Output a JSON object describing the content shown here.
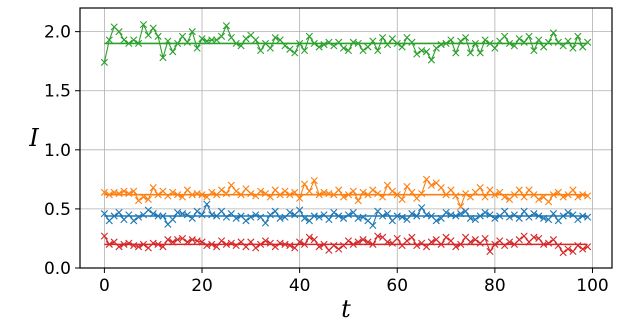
{
  "chart_data": {
    "type": "line",
    "title": "",
    "xlabel": "t",
    "ylabel": "I",
    "xlim": [
      -5,
      104
    ],
    "ylim": [
      0.0,
      2.2
    ],
    "xticks": [
      0,
      20,
      40,
      60,
      80,
      100
    ],
    "xtick_labels": [
      "0",
      "20",
      "40",
      "60",
      "80",
      "100"
    ],
    "yticks": [
      0.0,
      0.5,
      1.0,
      1.5,
      2.0
    ],
    "ytick_labels": [
      "0.0",
      "0.5",
      "1.0",
      "1.5",
      "2.0"
    ],
    "grid": true,
    "legend": "none",
    "marker": "x",
    "series": [
      {
        "color": "#2ca02c",
        "mean": 1.9,
        "values": [
          1.74,
          1.93,
          2.04,
          2.0,
          1.93,
          1.9,
          1.93,
          1.9,
          2.06,
          1.97,
          2.03,
          1.96,
          1.78,
          1.92,
          1.83,
          1.9,
          1.96,
          1.91,
          2.0,
          1.86,
          1.94,
          1.92,
          1.93,
          1.93,
          1.96,
          2.05,
          1.95,
          1.9,
          1.88,
          1.94,
          1.97,
          1.93,
          1.84,
          1.9,
          1.86,
          1.95,
          1.93,
          1.88,
          1.85,
          1.82,
          1.9,
          1.84,
          1.96,
          1.9,
          1.87,
          1.89,
          1.91,
          1.88,
          1.91,
          1.86,
          1.84,
          1.91,
          1.9,
          1.84,
          1.87,
          1.92,
          1.84,
          1.95,
          1.89,
          1.94,
          1.9,
          1.87,
          1.95,
          1.91,
          1.81,
          1.84,
          1.83,
          1.76,
          1.86,
          1.89,
          1.9,
          1.93,
          1.82,
          1.92,
          1.95,
          1.82,
          1.9,
          1.82,
          1.93,
          1.9,
          1.86,
          1.92,
          1.96,
          1.9,
          1.88,
          1.94,
          1.91,
          1.96,
          1.84,
          1.93,
          1.87,
          1.91,
          1.99,
          1.91,
          1.88,
          1.92,
          1.86,
          1.96,
          1.87,
          1.91
        ]
      },
      {
        "color": "#ff7f0e",
        "mean": 0.62,
        "values": [
          0.64,
          0.62,
          0.64,
          0.63,
          0.65,
          0.63,
          0.65,
          0.57,
          0.6,
          0.58,
          0.68,
          0.62,
          0.65,
          0.61,
          0.64,
          0.62,
          0.6,
          0.66,
          0.62,
          0.63,
          0.62,
          0.6,
          0.64,
          0.62,
          0.66,
          0.63,
          0.7,
          0.65,
          0.62,
          0.67,
          0.63,
          0.61,
          0.65,
          0.63,
          0.6,
          0.66,
          0.62,
          0.65,
          0.62,
          0.64,
          0.59,
          0.71,
          0.65,
          0.74,
          0.62,
          0.64,
          0.63,
          0.62,
          0.66,
          0.6,
          0.62,
          0.65,
          0.57,
          0.64,
          0.62,
          0.66,
          0.63,
          0.6,
          0.7,
          0.65,
          0.62,
          0.58,
          0.69,
          0.64,
          0.59,
          0.63,
          0.75,
          0.7,
          0.72,
          0.68,
          0.62,
          0.66,
          0.61,
          0.52,
          0.63,
          0.6,
          0.64,
          0.68,
          0.6,
          0.66,
          0.62,
          0.64,
          0.6,
          0.58,
          0.62,
          0.66,
          0.6,
          0.66,
          0.62,
          0.58,
          0.6,
          0.56,
          0.62,
          0.64,
          0.6,
          0.62,
          0.66,
          0.6,
          0.62,
          0.61
        ]
      },
      {
        "color": "#1f77b4",
        "mean": 0.44,
        "values": [
          0.46,
          0.4,
          0.44,
          0.47,
          0.41,
          0.45,
          0.4,
          0.43,
          0.45,
          0.49,
          0.46,
          0.44,
          0.44,
          0.37,
          0.41,
          0.47,
          0.46,
          0.45,
          0.42,
          0.48,
          0.45,
          0.54,
          0.45,
          0.44,
          0.48,
          0.43,
          0.46,
          0.42,
          0.44,
          0.4,
          0.43,
          0.45,
          0.43,
          0.38,
          0.45,
          0.48,
          0.42,
          0.43,
          0.47,
          0.45,
          0.49,
          0.42,
          0.4,
          0.44,
          0.43,
          0.45,
          0.41,
          0.47,
          0.44,
          0.42,
          0.45,
          0.47,
          0.42,
          0.43,
          0.4,
          0.36,
          0.48,
          0.44,
          0.46,
          0.4,
          0.44,
          0.43,
          0.41,
          0.46,
          0.44,
          0.51,
          0.45,
          0.44,
          0.4,
          0.42,
          0.47,
          0.45,
          0.44,
          0.46,
          0.48,
          0.42,
          0.41,
          0.44,
          0.47,
          0.45,
          0.42,
          0.44,
          0.48,
          0.43,
          0.45,
          0.42,
          0.48,
          0.43,
          0.46,
          0.44,
          0.42,
          0.41,
          0.46,
          0.4,
          0.44,
          0.47,
          0.45,
          0.41,
          0.44,
          0.43
        ]
      },
      {
        "color": "#d62728",
        "mean": 0.2,
        "values": [
          0.27,
          0.2,
          0.22,
          0.18,
          0.2,
          0.21,
          0.19,
          0.18,
          0.2,
          0.17,
          0.21,
          0.2,
          0.18,
          0.24,
          0.22,
          0.24,
          0.25,
          0.22,
          0.24,
          0.23,
          0.22,
          0.19,
          0.2,
          0.18,
          0.23,
          0.2,
          0.21,
          0.19,
          0.22,
          0.18,
          0.22,
          0.17,
          0.2,
          0.23,
          0.21,
          0.18,
          0.21,
          0.2,
          0.19,
          0.17,
          0.22,
          0.2,
          0.26,
          0.24,
          0.18,
          0.2,
          0.15,
          0.19,
          0.16,
          0.19,
          0.23,
          0.2,
          0.22,
          0.24,
          0.22,
          0.2,
          0.27,
          0.26,
          0.22,
          0.21,
          0.25,
          0.19,
          0.23,
          0.26,
          0.19,
          0.21,
          0.18,
          0.22,
          0.24,
          0.2,
          0.26,
          0.23,
          0.18,
          0.2,
          0.26,
          0.22,
          0.24,
          0.21,
          0.25,
          0.14,
          0.2,
          0.23,
          0.19,
          0.22,
          0.2,
          0.24,
          0.27,
          0.22,
          0.26,
          0.25,
          0.2,
          0.21,
          0.24,
          0.19,
          0.13,
          0.16,
          0.14,
          0.19,
          0.16,
          0.18
        ]
      }
    ]
  }
}
